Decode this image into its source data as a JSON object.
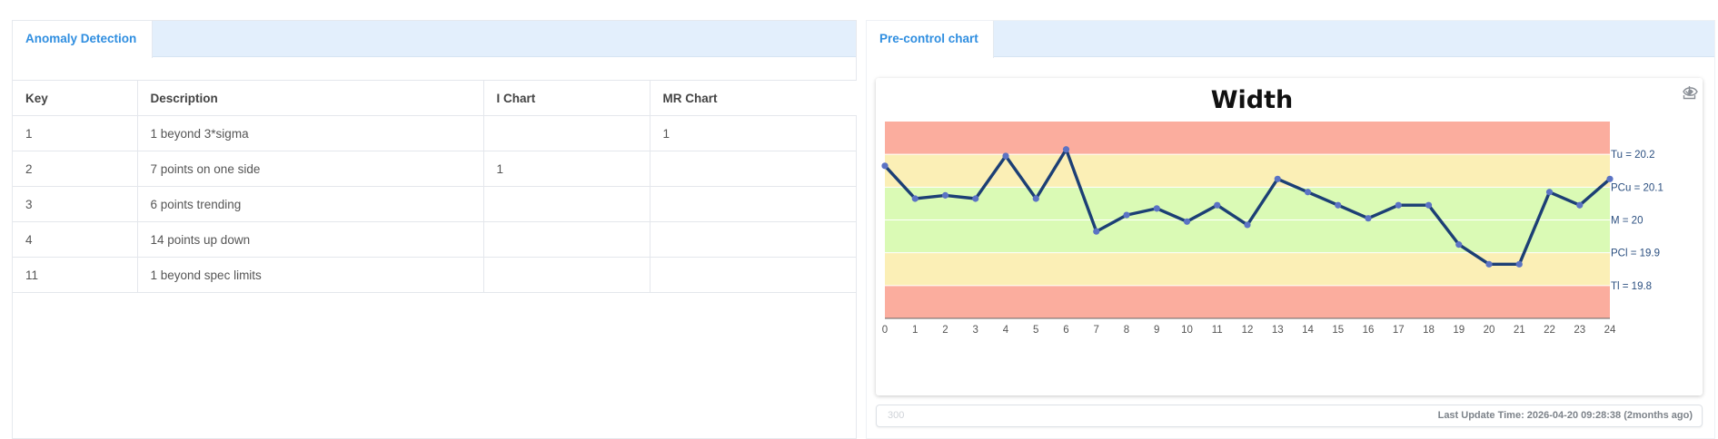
{
  "anomaly_panel": {
    "tab_label": "Anomaly Detection",
    "columns": [
      "Key",
      "Description",
      "I Chart",
      "MR Chart"
    ],
    "rows": [
      [
        "1",
        "1 beyond 3*sigma",
        "",
        "1"
      ],
      [
        "2",
        "7 points on one side",
        "1",
        ""
      ],
      [
        "3",
        "6 points trending",
        "",
        ""
      ],
      [
        "4",
        "14 points up down",
        "",
        ""
      ],
      [
        "11",
        "1 beyond spec limits",
        "",
        ""
      ]
    ]
  },
  "precontrol_panel": {
    "tab_label": "Pre-control chart",
    "icons": [
      "eye-icon",
      "download-icon"
    ],
    "footer": {
      "input_value": "300",
      "last_update": "Last Update Time: 2026-04-20 09:28:38 (2months ago)"
    }
  },
  "colors": {
    "red_zone": "#fbad9e",
    "yellow_zone": "#fbefb6",
    "green_zone": "#dafab5",
    "line": "#1c3f75",
    "point": "#5b73c4",
    "label": "#2b4f80",
    "tab_accent": "#2f8ee0"
  },
  "chart_data": {
    "type": "line",
    "title": "Width",
    "x": [
      0,
      1,
      2,
      3,
      4,
      5,
      6,
      7,
      8,
      9,
      10,
      11,
      12,
      13,
      14,
      15,
      16,
      17,
      18,
      19,
      20,
      21,
      22,
      23,
      24
    ],
    "values": [
      20.165,
      20.065,
      20.075,
      20.065,
      20.195,
      20.065,
      20.215,
      19.965,
      20.015,
      20.035,
      19.995,
      20.045,
      19.985,
      20.125,
      20.085,
      20.045,
      20.005,
      20.045,
      20.045,
      19.925,
      19.865,
      19.865,
      20.085,
      20.045,
      20.125
    ],
    "ylim": [
      19.7,
      20.3
    ],
    "limits": [
      {
        "label": "Tu = 20.2",
        "value": 20.2
      },
      {
        "label": "PCu = 20.1",
        "value": 20.1
      },
      {
        "label": "M = 20",
        "value": 20
      },
      {
        "label": "PCl = 19.9",
        "value": 19.9
      },
      {
        "label": "Tl = 19.8",
        "value": 19.8
      }
    ],
    "xlim": [
      0,
      24
    ],
    "grid": false
  }
}
